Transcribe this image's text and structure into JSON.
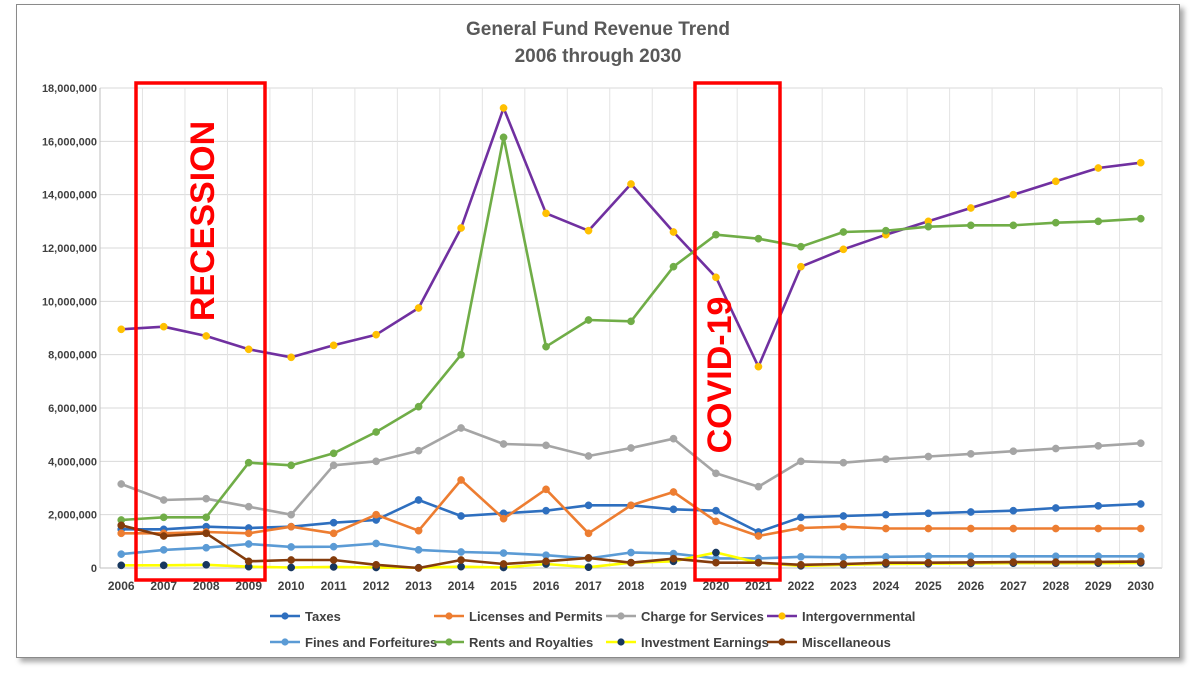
{
  "chart_data": {
    "type": "line",
    "title": "General Fund Revenue Trend",
    "subtitle": "2006 through 2030",
    "xlabel": "",
    "ylabel": "",
    "ylim": [
      0,
      18000000
    ],
    "ytick_step": 2000000,
    "grid": true,
    "legend_position": "bottom",
    "categories": [
      "2006",
      "2007",
      "2008",
      "2009",
      "2010",
      "2011",
      "2012",
      "2013",
      "2014",
      "2015",
      "2016",
      "2017",
      "2018",
      "2019",
      "2020",
      "2021",
      "2022",
      "2023",
      "2024",
      "2025",
      "2026",
      "2027",
      "2028",
      "2029",
      "2030"
    ],
    "ytick_labels": [
      "0",
      "2,000,000",
      "4,000,000",
      "6,000,000",
      "8,000,000",
      "10,000,000",
      "12,000,000",
      "14,000,000",
      "16,000,000",
      "18,000,000"
    ],
    "series": [
      {
        "name": "Taxes",
        "color": "#2e6fbf",
        "marker_color": "#2e6fbf",
        "values": [
          1450000,
          1450000,
          1550000,
          1500000,
          1550000,
          1700000,
          1800000,
          2550000,
          1950000,
          2050000,
          2150000,
          2350000,
          2350000,
          2200000,
          2150000,
          1350000,
          1900000,
          1950000,
          2000000,
          2050000,
          2100000,
          2150000,
          2250000,
          2330000,
          2400000
        ]
      },
      {
        "name": "Licenses and Permits",
        "color": "#ed7d31",
        "marker_color": "#ed7d31",
        "values": [
          1300000,
          1300000,
          1350000,
          1300000,
          1550000,
          1300000,
          2000000,
          1400000,
          3300000,
          1850000,
          2950000,
          1300000,
          2350000,
          2850000,
          1750000,
          1200000,
          1500000,
          1550000,
          1480000,
          1480000,
          1480000,
          1480000,
          1480000,
          1480000,
          1480000
        ]
      },
      {
        "name": "Charge for Services",
        "color": "#a5a5a5",
        "marker_color": "#a5a5a5",
        "values": [
          3150000,
          2550000,
          2600000,
          2300000,
          2000000,
          3850000,
          4000000,
          4400000,
          5250000,
          4650000,
          4600000,
          4200000,
          4500000,
          4850000,
          3550000,
          3050000,
          4000000,
          3950000,
          4080000,
          4180000,
          4280000,
          4380000,
          4480000,
          4580000,
          4680000
        ]
      },
      {
        "name": "Intergovernmental",
        "color": "#7030a0",
        "marker_color": "#ffc000",
        "values": [
          8950000,
          9050000,
          8700000,
          8200000,
          7900000,
          8350000,
          8750000,
          9750000,
          12750000,
          17250000,
          13300000,
          12650000,
          14400000,
          12600000,
          10900000,
          7550000,
          11300000,
          11950000,
          12500000,
          13000000,
          13500000,
          14000000,
          14500000,
          15000000,
          15200000
        ]
      },
      {
        "name": "Fines and Forfeitures",
        "color": "#5b9bd5",
        "marker_color": "#5b9bd5",
        "values": [
          520000,
          680000,
          760000,
          900000,
          790000,
          800000,
          920000,
          680000,
          600000,
          560000,
          480000,
          360000,
          580000,
          540000,
          360000,
          360000,
          420000,
          400000,
          420000,
          440000,
          440000,
          440000,
          440000,
          440000,
          440000
        ]
      },
      {
        "name": "Rents and Royalties",
        "color": "#70ad47",
        "marker_color": "#70ad47",
        "values": [
          1800000,
          1900000,
          1900000,
          3950000,
          3850000,
          4300000,
          5100000,
          6050000,
          8000000,
          16150000,
          8300000,
          9300000,
          9250000,
          11300000,
          12500000,
          12350000,
          12050000,
          12600000,
          12650000,
          12800000,
          12850000,
          12850000,
          12950000,
          13000000,
          13100000
        ]
      },
      {
        "name": "Investment Earnings",
        "color": "#ffff00",
        "marker_color": "#17375e",
        "values": [
          100000,
          100000,
          120000,
          50000,
          20000,
          40000,
          20000,
          10000,
          50000,
          20000,
          150000,
          30000,
          200000,
          250000,
          580000,
          200000,
          80000,
          120000,
          150000,
          160000,
          170000,
          180000,
          180000,
          180000,
          190000
        ]
      },
      {
        "name": "Miscellaneous",
        "color": "#843c0c",
        "marker_color": "#843c0c",
        "values": [
          1600000,
          1200000,
          1300000,
          250000,
          300000,
          300000,
          120000,
          0,
          300000,
          150000,
          250000,
          380000,
          200000,
          350000,
          200000,
          200000,
          120000,
          150000,
          200000,
          200000,
          210000,
          220000,
          220000,
          230000,
          240000
        ]
      }
    ],
    "annotations": [
      {
        "text": "RECESSION",
        "color": "#ff0000"
      },
      {
        "text": "COVID-19",
        "color": "#ff0000"
      }
    ]
  }
}
